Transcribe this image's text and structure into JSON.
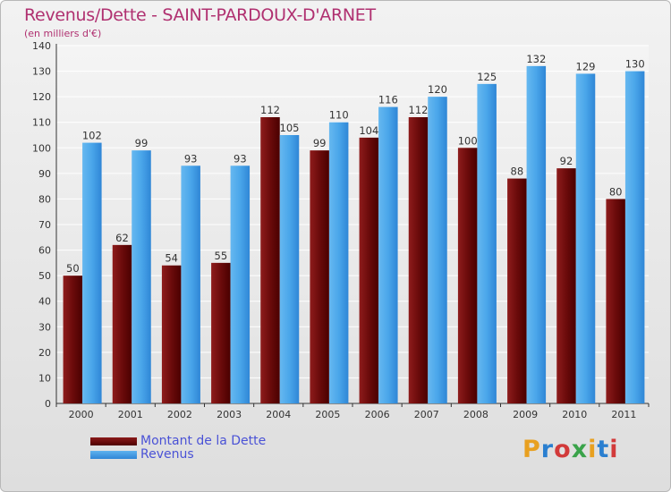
{
  "title": "Revenus/Dette - SAINT-PARDOUX-D'ARNET",
  "subtitle": "(en milliers d'€)",
  "logo": {
    "text": "Proxiti",
    "colors": [
      "#e8a020",
      "#2a7fd0",
      "#d23a3a",
      "#3aa34a",
      "#e8a020",
      "#2a7fd0",
      "#d23a3a"
    ]
  },
  "colors": {
    "dette": "#6b0b0b",
    "revenus": "#3e9ee6",
    "title": "#b03070",
    "legend_text": "#4a52d6"
  },
  "chart_data": {
    "type": "bar",
    "title": "Revenus/Dette - SAINT-PARDOUX-D'ARNET",
    "ylabel": "",
    "xlabel": "",
    "ylim": [
      0,
      140
    ],
    "ytick_step": 10,
    "grid": true,
    "categories": [
      "2000",
      "2001",
      "2002",
      "2003",
      "2004",
      "2005",
      "2006",
      "2007",
      "2008",
      "2009",
      "2010",
      "2011"
    ],
    "series": [
      {
        "name": "Montant de la Dette",
        "values": [
          50,
          62,
          54,
          55,
          112,
          99,
          104,
          112,
          100,
          88,
          92,
          80
        ]
      },
      {
        "name": "Revenus",
        "values": [
          102,
          99,
          93,
          93,
          105,
          110,
          116,
          120,
          125,
          132,
          129,
          130
        ]
      }
    ],
    "legend_position": "bottom-left"
  }
}
